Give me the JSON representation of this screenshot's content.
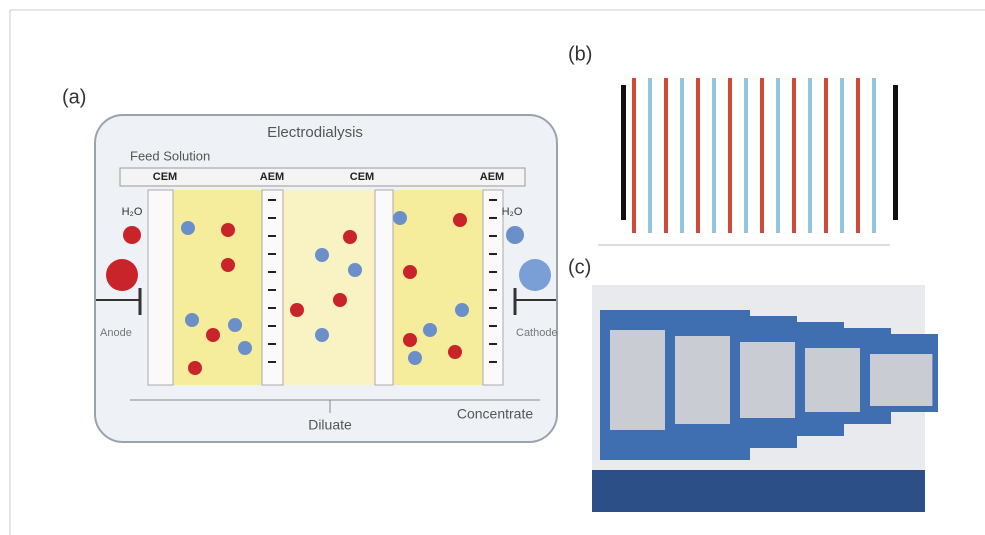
{
  "panels": {
    "a": {
      "label": "(a)",
      "title": "Electrodialysis",
      "feed": "Feed Solution",
      "membranes": [
        "CEM",
        "AEM",
        "CEM",
        "AEM"
      ],
      "water_left": "H₂O",
      "water_right": "H₂O",
      "anode": "Anode",
      "cathode": "Cathode",
      "diluate": "Diluate",
      "concentrate": "Concentrate"
    },
    "b": {
      "label": "(b)"
    },
    "c": {
      "label": "(c)"
    }
  }
}
